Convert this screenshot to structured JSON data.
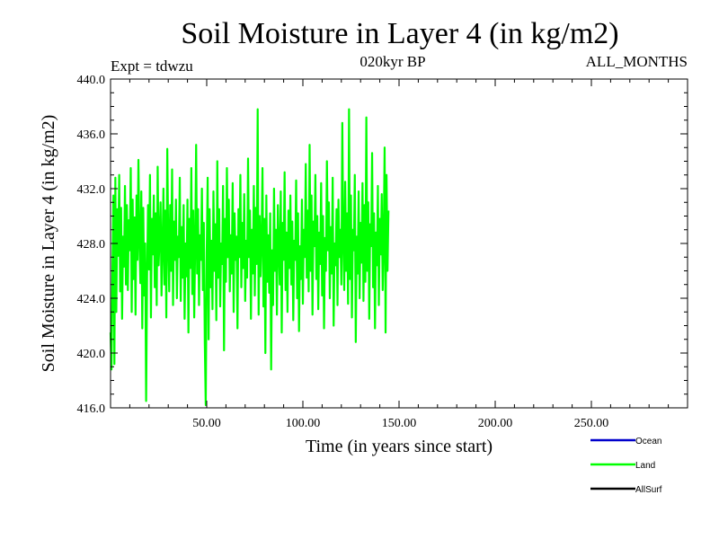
{
  "chart_data": {
    "type": "line",
    "title": "Soil Moisture in Layer 4 (in kg/m2)",
    "subtitle_left": "Expt = tdwzu",
    "subtitle_center": "020kyr BP",
    "subtitle_right": "ALL_MONTHS",
    "xlabel": "Time (in years since start)",
    "ylabel": "Soil Moisture in Layer 4 (in kg/m2)",
    "xlim": [
      0,
      300
    ],
    "ylim": [
      416.0,
      440.0
    ],
    "x_ticks": [
      50,
      100,
      150,
      200,
      250
    ],
    "x_tick_labels": [
      "50.00",
      "100.00",
      "150.00",
      "200.00",
      "250.00"
    ],
    "y_ticks": [
      416,
      420,
      424,
      428,
      432,
      436,
      440
    ],
    "y_tick_labels": [
      "416.0",
      "420.0",
      "424.0",
      "428.0",
      "432.0",
      "436.0",
      "440.0"
    ],
    "legend_position": "bottom-right",
    "series": [
      {
        "name": "Ocean",
        "color": "#0000cc",
        "values": []
      },
      {
        "name": "Land",
        "color": "#00ff00",
        "x_start": 0,
        "x_step": 0.5,
        "values": [
          421.5,
          418.8,
          426.2,
          431.5,
          419.2,
          432.8,
          423.0,
          430.5,
          427.1,
          433.0,
          424.5,
          430.6,
          422.5,
          428.5,
          426.3,
          432.2,
          425.0,
          430.8,
          424.6,
          429.7,
          427.5,
          433.5,
          423.0,
          431.2,
          425.4,
          429.9,
          422.8,
          431.5,
          426.8,
          434.1,
          428.2,
          425.1,
          431.8,
          421.8,
          430.6,
          424.2,
          428.0,
          416.5,
          425.6,
          430.8,
          426.1,
          433.0,
          422.6,
          429.8,
          427.2,
          431.5,
          424.8,
          430.2,
          423.5,
          433.6,
          426.4,
          428.5,
          431.0,
          424.2,
          427.8,
          432.0,
          425.0,
          430.4,
          422.6,
          434.9,
          428.2,
          424.5,
          430.8,
          426.0,
          433.4,
          423.5,
          429.6,
          426.8,
          431.2,
          424.0,
          428.5,
          427.0,
          432.8,
          423.8,
          429.2,
          425.5,
          430.8,
          422.5,
          428.0,
          425.6,
          431.2,
          421.5,
          429.8,
          426.2,
          433.5,
          424.3,
          430.4,
          422.6,
          427.8,
          435.2,
          425.8,
          430.5,
          423.5,
          428.6,
          426.8,
          432.0,
          424.6,
          429.5,
          420.8,
          416.2,
          427.3,
          432.8,
          421.0,
          430.5,
          424.8,
          428.2,
          423.2,
          431.8,
          426.0,
          429.4,
          422.4,
          434.0,
          425.5,
          430.5,
          423.4,
          428.0,
          426.5,
          432.2,
          420.2,
          429.8,
          425.2,
          433.5,
          427.0,
          431.2,
          424.5,
          428.6,
          425.8,
          432.4,
          423.0,
          430.2,
          426.8,
          428.5,
          421.8,
          430.5,
          427.0,
          433.0,
          424.8,
          429.5,
          426.2,
          431.6,
          423.8,
          428.2,
          425.5,
          434.2,
          427.0,
          430.4,
          422.5,
          429.0,
          425.8,
          432.2,
          424.2,
          430.6,
          426.5,
          437.8,
          422.8,
          430.0,
          425.6,
          428.2,
          433.5,
          423.4,
          429.8,
          420.0,
          431.5,
          425.2,
          428.6,
          424.4,
          430.2,
          418.8,
          427.5,
          423.5,
          432.0,
          426.0,
          429.0,
          422.8,
          430.8,
          427.6,
          425.0,
          431.8,
          421.5,
          429.5,
          426.8,
          433.2,
          424.6,
          428.8,
          423.0,
          430.4,
          426.2,
          431.5,
          425.0,
          429.6,
          422.4,
          428.2,
          426.8,
          432.6,
          424.0,
          430.2,
          421.6,
          427.8,
          425.4,
          431.2,
          423.6,
          429.0,
          427.0,
          433.8,
          425.5,
          430.4,
          424.5,
          435.2,
          426.0,
          431.5,
          422.8,
          429.6,
          427.8,
          433.0,
          425.4,
          430.0,
          423.2,
          428.8,
          426.5,
          432.4,
          424.2,
          430.0,
          421.8,
          428.4,
          426.0,
          434.0,
          427.5,
          431.0,
          424.0,
          429.2,
          425.8,
          432.8,
          422.0,
          428.0,
          426.4,
          430.5,
          423.5,
          431.2,
          427.0,
          429.0,
          425.0,
          436.8,
          428.2,
          424.6,
          432.5,
          426.0,
          430.2,
          423.6,
          437.8,
          425.4,
          431.5,
          422.6,
          429.0,
          427.5,
          433.0,
          420.8,
          428.5,
          425.8,
          431.8,
          424.0,
          429.5,
          426.6,
          432.4,
          423.8,
          430.8,
          425.2,
          437.2,
          426.0,
          431.0,
          422.5,
          429.4,
          427.8,
          434.6,
          424.8,
          430.2,
          421.8,
          428.8,
          426.4,
          432.2,
          423.5,
          429.8,
          427.2,
          431.6,
          424.6,
          428.2,
          435.0,
          421.5,
          433.0,
          426.0,
          430.4
        ]
      },
      {
        "name": "AllSurf",
        "color": "#000000",
        "values": []
      }
    ]
  }
}
